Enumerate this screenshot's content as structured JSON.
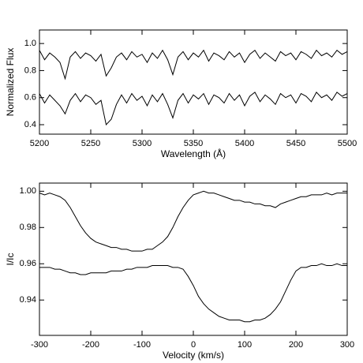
{
  "chart_data": [
    {
      "type": "line",
      "xlabel": "Wavelength (Å)",
      "ylabel": "Normalized Flux",
      "xlim": [
        5200,
        5500
      ],
      "xticks": [
        5200,
        5250,
        5300,
        5350,
        5400,
        5450,
        5500
      ],
      "ylim": [
        0.33,
        1.1
      ],
      "yticks": [
        0.4,
        0.6,
        0.8,
        {
          "value": 1,
          "label": "1.0"
        }
      ],
      "x": [
        5200,
        5205,
        5210,
        5215,
        5220,
        5225,
        5230,
        5235,
        5240,
        5245,
        5250,
        5255,
        5260,
        5265,
        5270,
        5275,
        5280,
        5285,
        5290,
        5295,
        5300,
        5305,
        5310,
        5315,
        5320,
        5325,
        5330,
        5335,
        5340,
        5345,
        5350,
        5355,
        5360,
        5365,
        5370,
        5375,
        5380,
        5385,
        5390,
        5395,
        5400,
        5405,
        5410,
        5415,
        5420,
        5425,
        5430,
        5435,
        5440,
        5445,
        5450,
        5455,
        5460,
        5465,
        5470,
        5475,
        5480,
        5485,
        5490,
        5495,
        5500
      ],
      "series": [
        {
          "color": "#000000",
          "values": [
            0.95,
            0.88,
            0.93,
            0.9,
            0.86,
            0.74,
            0.9,
            0.94,
            0.89,
            0.93,
            0.91,
            0.87,
            0.92,
            0.76,
            0.82,
            0.9,
            0.93,
            0.88,
            0.94,
            0.9,
            0.92,
            0.86,
            0.93,
            0.89,
            0.95,
            0.88,
            0.77,
            0.9,
            0.94,
            0.88,
            0.93,
            0.9,
            0.95,
            0.87,
            0.93,
            0.91,
            0.88,
            0.94,
            0.9,
            0.93,
            0.86,
            0.92,
            0.95,
            0.89,
            0.93,
            0.9,
            0.87,
            0.94,
            0.91,
            0.93,
            0.88,
            0.94,
            0.92,
            0.89,
            0.95,
            0.91,
            0.93,
            0.9,
            0.95,
            0.92,
            0.94
          ]
        },
        {
          "color": "#000000",
          "values": [
            0.63,
            0.56,
            0.62,
            0.58,
            0.54,
            0.48,
            0.58,
            0.63,
            0.57,
            0.62,
            0.6,
            0.55,
            0.58,
            0.4,
            0.44,
            0.55,
            0.62,
            0.56,
            0.63,
            0.58,
            0.61,
            0.54,
            0.62,
            0.57,
            0.63,
            0.55,
            0.45,
            0.58,
            0.63,
            0.56,
            0.62,
            0.59,
            0.63,
            0.55,
            0.62,
            0.6,
            0.56,
            0.63,
            0.58,
            0.62,
            0.54,
            0.61,
            0.64,
            0.57,
            0.62,
            0.59,
            0.55,
            0.63,
            0.6,
            0.62,
            0.56,
            0.63,
            0.61,
            0.57,
            0.64,
            0.6,
            0.62,
            0.58,
            0.64,
            0.61,
            0.63
          ]
        }
      ]
    },
    {
      "type": "line",
      "xlabel": "Velocity (km/s)",
      "ylabel": "I/Ic",
      "xlim": [
        -300,
        300
      ],
      "xticks": [
        -300,
        -200,
        -100,
        0,
        100,
        200,
        300
      ],
      "ylim": [
        0.9205,
        1.0045
      ],
      "yticks": [
        0.94,
        0.96,
        0.98,
        {
          "value": 1,
          "label": "1.00"
        }
      ],
      "x": [
        -300,
        -290,
        -280,
        -270,
        -260,
        -250,
        -240,
        -230,
        -220,
        -210,
        -200,
        -190,
        -180,
        -170,
        -160,
        -150,
        -140,
        -130,
        -120,
        -110,
        -100,
        -90,
        -80,
        -70,
        -60,
        -50,
        -40,
        -30,
        -20,
        -10,
        0,
        10,
        20,
        30,
        40,
        50,
        60,
        70,
        80,
        90,
        100,
        110,
        120,
        130,
        140,
        150,
        160,
        170,
        180,
        190,
        200,
        210,
        220,
        230,
        240,
        250,
        260,
        270,
        280,
        290,
        300
      ],
      "series": [
        {
          "color": "#000000",
          "values": [
            0.999,
            0.998,
            0.999,
            0.998,
            0.997,
            0.995,
            0.991,
            0.986,
            0.981,
            0.977,
            0.974,
            0.972,
            0.971,
            0.97,
            0.969,
            0.969,
            0.968,
            0.968,
            0.967,
            0.967,
            0.967,
            0.968,
            0.968,
            0.97,
            0.972,
            0.975,
            0.98,
            0.986,
            0.991,
            0.995,
            0.998,
            0.999,
            1.0,
            0.999,
            0.999,
            0.998,
            0.997,
            0.996,
            0.995,
            0.995,
            0.994,
            0.994,
            0.993,
            0.993,
            0.992,
            0.992,
            0.991,
            0.993,
            0.994,
            0.995,
            0.996,
            0.997,
            0.997,
            0.998,
            0.998,
            0.998,
            0.999,
            0.998,
            0.999,
            0.999,
            0.999
          ]
        },
        {
          "color": "#000000",
          "values": [
            0.958,
            0.958,
            0.958,
            0.957,
            0.957,
            0.956,
            0.955,
            0.955,
            0.954,
            0.954,
            0.955,
            0.955,
            0.955,
            0.955,
            0.956,
            0.956,
            0.956,
            0.957,
            0.957,
            0.958,
            0.958,
            0.958,
            0.959,
            0.959,
            0.959,
            0.959,
            0.958,
            0.958,
            0.957,
            0.953,
            0.948,
            0.942,
            0.938,
            0.935,
            0.933,
            0.931,
            0.93,
            0.929,
            0.929,
            0.929,
            0.928,
            0.928,
            0.929,
            0.929,
            0.93,
            0.932,
            0.935,
            0.939,
            0.945,
            0.951,
            0.956,
            0.958,
            0.958,
            0.959,
            0.959,
            0.96,
            0.959,
            0.959,
            0.96,
            0.959,
            0.959
          ]
        }
      ]
    }
  ]
}
